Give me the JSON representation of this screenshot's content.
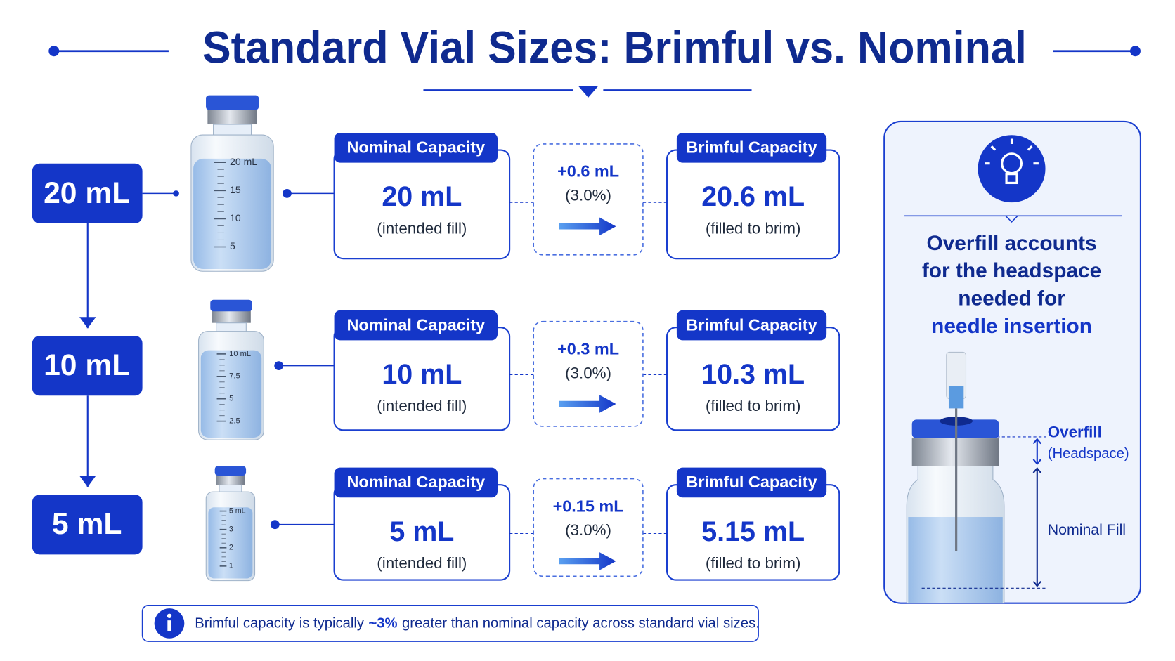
{
  "title": "Standard Vial Sizes: Brimful vs. Nominal",
  "rows": [
    {
      "size": "20 mL",
      "scale": [
        "20 mL",
        "15",
        "10",
        "5"
      ],
      "nominal_label": "Nominal Capacity",
      "nominal": "20 mL",
      "nominal_note": "(intended fill)",
      "difference": "+0.6 mL",
      "percent": "(3.0%)",
      "brimful_label": "Brimful Capacity",
      "brimful": "20.6 mL",
      "brimful_note": "(filled to brim)"
    },
    {
      "size": "10 mL",
      "scale": [
        "10 mL",
        "7.5",
        "5",
        "2.5"
      ],
      "nominal_label": "Nominal Capacity",
      "nominal": "10 mL",
      "nominal_note": "(intended fill)",
      "difference": "+0.3 mL",
      "percent": "(3.0%)",
      "brimful_label": "Brimful Capacity",
      "brimful": "10.3 mL",
      "brimful_note": "(filled to brim)"
    },
    {
      "size": "5 mL",
      "scale": [
        "5 mL",
        "3",
        "2",
        "1"
      ],
      "nominal_label": "Nominal Capacity",
      "nominal": "5 mL",
      "nominal_note": "(intended fill)",
      "difference": "+0.15 mL",
      "percent": "(3.0%)",
      "brimful_label": "Brimful Capacity",
      "brimful": "5.15 mL",
      "brimful_note": "(filled to brim)"
    }
  ],
  "panel": {
    "lines": [
      "Overfill accounts",
      "for the headspace",
      "needed for"
    ],
    "highlight": "needle insertion",
    "overfill": "Overfill",
    "headspace": "(Headspace)",
    "nominal_fill": "Nominal Fill"
  },
  "footer": {
    "before": "Brimful capacity is typically",
    "highlight": "~3%",
    "after": "greater than nominal capacity across standard vial sizes."
  }
}
